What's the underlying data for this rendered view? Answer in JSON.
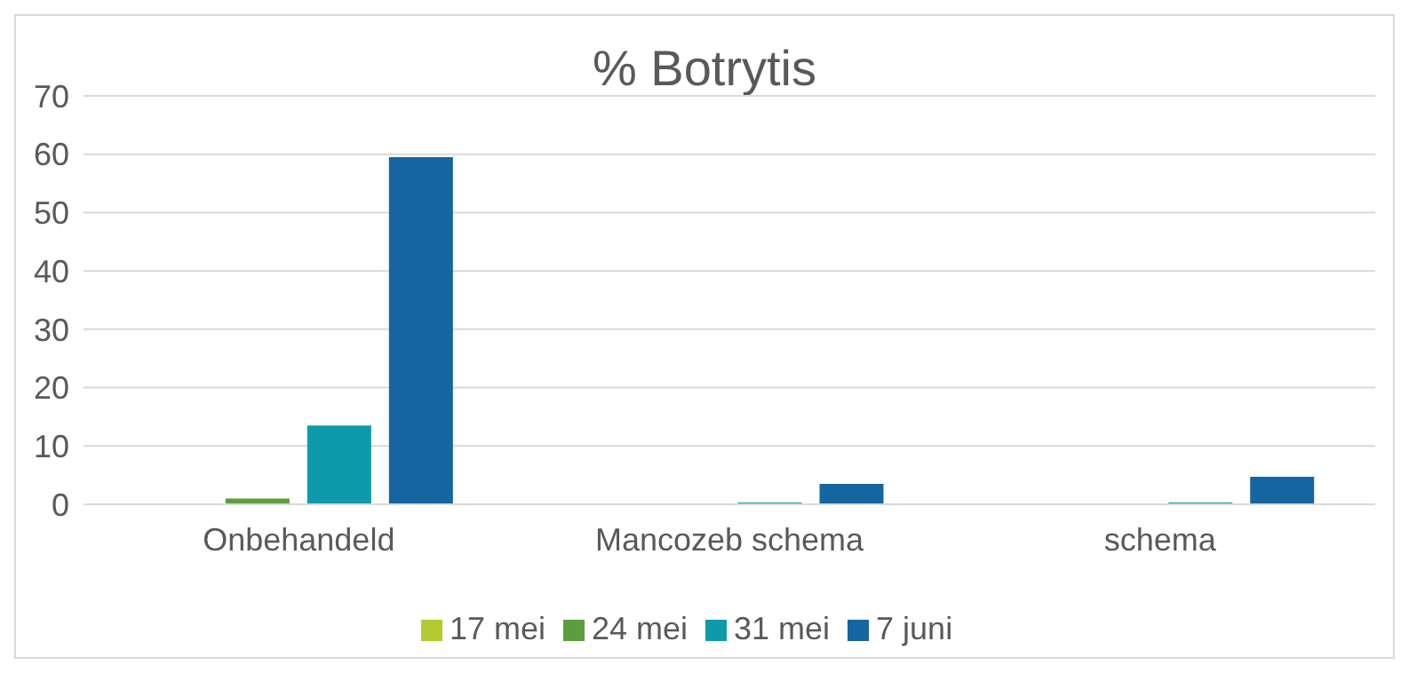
{
  "chart_data": {
    "type": "bar",
    "title": "% Botrytis",
    "categories": [
      "Onbehandeld",
      "Mancozeb schema",
      "schema"
    ],
    "series": [
      {
        "name": "17 mei",
        "color": "#b5c932",
        "values": [
          0,
          0,
          0
        ]
      },
      {
        "name": "24 mei",
        "color": "#5d9e3c",
        "values": [
          1,
          0,
          0
        ]
      },
      {
        "name": "31 mei",
        "color": "#0f9aaa",
        "values": [
          13.5,
          0.3,
          0.3
        ]
      },
      {
        "name": "7 juni",
        "color": "#1565a0",
        "values": [
          59.5,
          3.5,
          4.7
        ]
      }
    ],
    "ylim": [
      0,
      70
    ],
    "yticks": [
      0,
      10,
      20,
      30,
      40,
      50,
      60,
      70
    ],
    "grid": "y",
    "legend": "bottom"
  }
}
